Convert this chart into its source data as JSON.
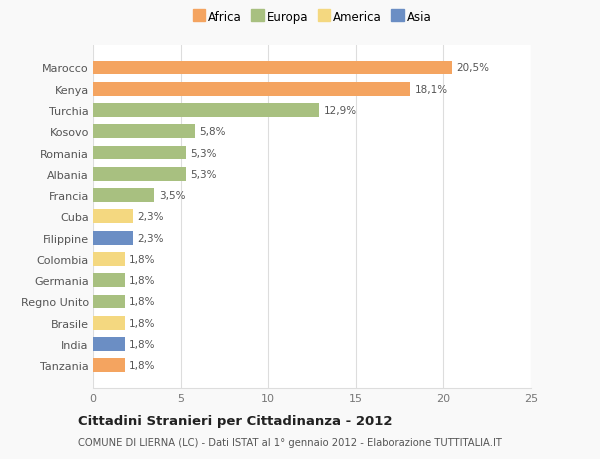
{
  "categories": [
    "Tanzania",
    "India",
    "Brasile",
    "Regno Unito",
    "Germania",
    "Colombia",
    "Filippine",
    "Cuba",
    "Francia",
    "Albania",
    "Romania",
    "Kosovo",
    "Turchia",
    "Kenya",
    "Marocco"
  ],
  "values": [
    1.8,
    1.8,
    1.8,
    1.8,
    1.8,
    1.8,
    2.3,
    2.3,
    3.5,
    5.3,
    5.3,
    5.8,
    12.9,
    18.1,
    20.5
  ],
  "labels": [
    "1,8%",
    "1,8%",
    "1,8%",
    "1,8%",
    "1,8%",
    "1,8%",
    "2,3%",
    "2,3%",
    "3,5%",
    "5,3%",
    "5,3%",
    "5,8%",
    "12,9%",
    "18,1%",
    "20,5%"
  ],
  "colors": [
    "#F4A460",
    "#6B8EC4",
    "#F4D880",
    "#A8C080",
    "#A8C080",
    "#F4D880",
    "#6B8EC4",
    "#F4D880",
    "#A8C080",
    "#A8C080",
    "#A8C080",
    "#A8C080",
    "#A8C080",
    "#F4A460",
    "#F4A460"
  ],
  "legend_labels": [
    "Africa",
    "Europa",
    "America",
    "Asia"
  ],
  "legend_colors": [
    "#F4A460",
    "#A8C080",
    "#F4D880",
    "#6B8EC4"
  ],
  "title": "Cittadini Stranieri per Cittadinanza - 2012",
  "subtitle": "COMUNE DI LIERNA (LC) - Dati ISTAT al 1° gennaio 2012 - Elaborazione TUTTITALIA.IT",
  "xlim": [
    0,
    25
  ],
  "xticks": [
    0,
    5,
    10,
    15,
    20,
    25
  ],
  "background_color": "#f9f9f9",
  "bar_background": "#ffffff",
  "grid_color": "#dddddd"
}
